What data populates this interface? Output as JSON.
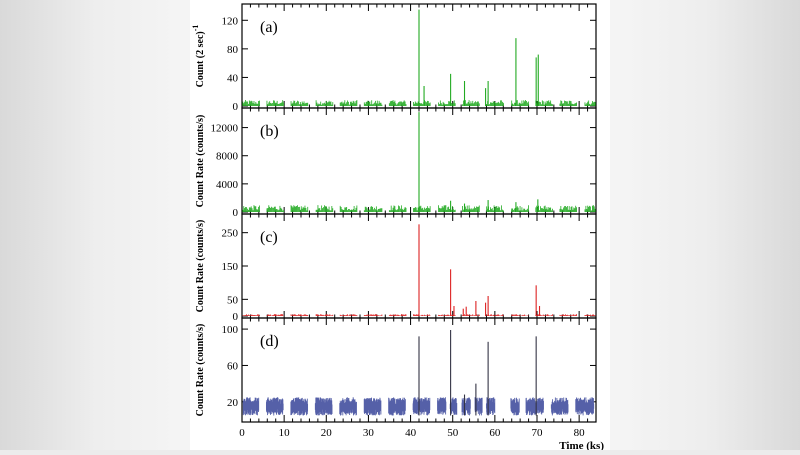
{
  "chart_data": [
    {
      "type": "line",
      "panel_label": "(a)",
      "ylabel": "Count (2 sec)",
      "ylabel_superscript": "-1",
      "xlabel": "Time (ks)",
      "xlim": [
        0,
        84
      ],
      "ylim": [
        0,
        140
      ],
      "yticks": [
        0,
        40,
        80,
        120
      ],
      "ytick_labels": [
        "0",
        "40",
        "80",
        "120"
      ],
      "color": "#22aa22",
      "baseline_level": 6,
      "peaks": [
        {
          "x": 42.0,
          "y": 135
        },
        {
          "x": 43.2,
          "y": 28
        },
        {
          "x": 49.5,
          "y": 45
        },
        {
          "x": 52.8,
          "y": 35
        },
        {
          "x": 57.8,
          "y": 25
        },
        {
          "x": 58.4,
          "y": 35
        },
        {
          "x": 65.0,
          "y": 95
        },
        {
          "x": 69.8,
          "y": 68
        },
        {
          "x": 70.3,
          "y": 72
        }
      ]
    },
    {
      "type": "line",
      "panel_label": "(b)",
      "ylabel": "Count Rate (counts/s)",
      "xlim": [
        0,
        84
      ],
      "ylim": [
        0,
        14500
      ],
      "yticks": [
        0,
        4000,
        8000,
        12000
      ],
      "ytick_labels": [
        "0",
        "4000",
        "8000",
        "12000"
      ],
      "color": "#22aa22",
      "baseline_level": 700,
      "peaks": [
        {
          "x": 42.0,
          "y": 14200
        },
        {
          "x": 49.5,
          "y": 1600
        },
        {
          "x": 52.8,
          "y": 1200
        },
        {
          "x": 58.4,
          "y": 1700
        },
        {
          "x": 65.0,
          "y": 1400
        },
        {
          "x": 70.2,
          "y": 1800
        }
      ]
    },
    {
      "type": "line",
      "panel_label": "(c)",
      "ylabel": "Count Rate (counts/s)",
      "xlim": [
        0,
        84
      ],
      "ylim": [
        0,
        300
      ],
      "yticks": [
        0,
        50,
        150,
        250
      ],
      "ytick_labels": [
        "0",
        "50",
        "150",
        "250"
      ],
      "color": "#dd2222",
      "baseline_level": 4,
      "peaks": [
        {
          "x": 42.0,
          "y": 275
        },
        {
          "x": 49.5,
          "y": 140
        },
        {
          "x": 50.3,
          "y": 30
        },
        {
          "x": 52.5,
          "y": 22
        },
        {
          "x": 53.2,
          "y": 28
        },
        {
          "x": 55.5,
          "y": 45
        },
        {
          "x": 57.8,
          "y": 40
        },
        {
          "x": 58.4,
          "y": 60
        },
        {
          "x": 69.8,
          "y": 92
        },
        {
          "x": 70.6,
          "y": 30
        }
      ]
    },
    {
      "type": "line",
      "panel_label": "(d)",
      "ylabel": "Count Rate (counts/s)",
      "xlabel": "Time (ks)",
      "xlim": [
        0,
        84
      ],
      "ylim": [
        0,
        110
      ],
      "yticks": [
        20,
        60,
        100
      ],
      "ytick_labels": [
        "20",
        "60",
        "100"
      ],
      "xticks": [
        0,
        10,
        20,
        30,
        40,
        50,
        60,
        70,
        80
      ],
      "xtick_labels": [
        "0",
        "10",
        "20",
        "30",
        "40",
        "50",
        "60",
        "70",
        "80"
      ],
      "color": "#5560a8",
      "spike_color": "#333344",
      "noise_range": [
        5,
        25
      ],
      "segments": [
        [
          0.3,
          4.0
        ],
        [
          5.8,
          9.8
        ],
        [
          11.6,
          15.6
        ],
        [
          17.4,
          21.4
        ],
        [
          23.2,
          27.2
        ],
        [
          29.0,
          33.0
        ],
        [
          34.8,
          38.8
        ],
        [
          40.6,
          44.6
        ],
        [
          46.4,
          48.4
        ],
        [
          49.4,
          51.0
        ],
        [
          52.2,
          54.2
        ],
        [
          55.3,
          57.0
        ],
        [
          58.0,
          60.0
        ],
        [
          63.8,
          65.8
        ],
        [
          67.4,
          71.6
        ],
        [
          73.4,
          77.4
        ],
        [
          79.2,
          83.5
        ]
      ],
      "peaks": [
        {
          "x": 42.0,
          "y": 92
        },
        {
          "x": 49.5,
          "y": 99
        },
        {
          "x": 52.8,
          "y": 28
        },
        {
          "x": 55.5,
          "y": 40
        },
        {
          "x": 58.4,
          "y": 86
        },
        {
          "x": 69.8,
          "y": 92
        }
      ]
    }
  ]
}
